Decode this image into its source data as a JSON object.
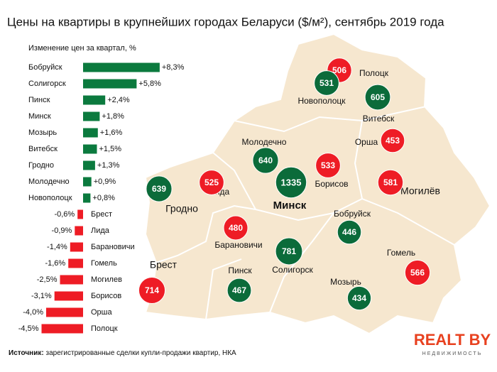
{
  "chart_data": [
    {
      "type": "bar",
      "title": "Цены на квартиры в крупнейших городах Беларуси ($/м²), сентябрь 2019 года",
      "subtitle": "Изменение цен за квартал, %",
      "categories": [
        "Бобруйск",
        "Солигорск",
        "Пинск",
        "Минск",
        "Мозырь",
        "Витебск",
        "Гродно",
        "Молодечно",
        "Новополоцк",
        "Брест",
        "Лида",
        "Барановичи",
        "Гомель",
        "Могилев",
        "Борисов",
        "Орша",
        "Полоцк"
      ],
      "values": [
        8.3,
        5.8,
        2.4,
        1.8,
        1.6,
        1.5,
        1.3,
        0.9,
        0.8,
        -0.6,
        -0.9,
        -1.4,
        -1.6,
        -2.5,
        -3.1,
        -4.0,
        -4.5
      ],
      "value_labels": [
        "+8,3%",
        "+5,8%",
        "+2,4%",
        "+1,8%",
        "+1,6%",
        "+1,5%",
        "+1,3%",
        "+0,9%",
        "+0,8%",
        "-0,6%",
        "-0,9%",
        "-1,4%",
        "-1,6%",
        "-2,5%",
        "-3,1%",
        "-4,0%",
        "-4,5%"
      ],
      "positive_color": "#0b7a3e",
      "negative_color": "#ee1c25"
    },
    {
      "type": "map",
      "categories": [
        "Полоцк",
        "Новополоцк",
        "Витебск",
        "Орша",
        "Молодечно",
        "Минск",
        "Борисов",
        "Могилёв",
        "Гродно",
        "Лида",
        "Барановичи",
        "Бобруйск",
        "Солигорск",
        "Гомель",
        "Брест",
        "Пинск",
        "Мозырь"
      ],
      "values": [
        506,
        531,
        605,
        453,
        640,
        1335,
        533,
        581,
        639,
        525,
        480,
        446,
        781,
        566,
        714,
        467,
        434
      ],
      "colors": [
        "#ee1c25",
        "#0b6b3a",
        "#0b6b3a",
        "#ee1c25",
        "#0b6b3a",
        "#0b6b3a",
        "#ee1c25",
        "#ee1c25",
        "#0b6b3a",
        "#ee1c25",
        "#ee1c25",
        "#0b6b3a",
        "#0b6b3a",
        "#ee1c25",
        "#ee1c25",
        "#0b6b3a",
        "#0b6b3a"
      ]
    }
  ],
  "source": {
    "label": "Источник:",
    "text": "зарегистрированные сделки купли-продажи квартир, НКА"
  },
  "logo": {
    "name": "REALT BY",
    "tagline": "НЕДВИЖИМОСТЬ"
  }
}
